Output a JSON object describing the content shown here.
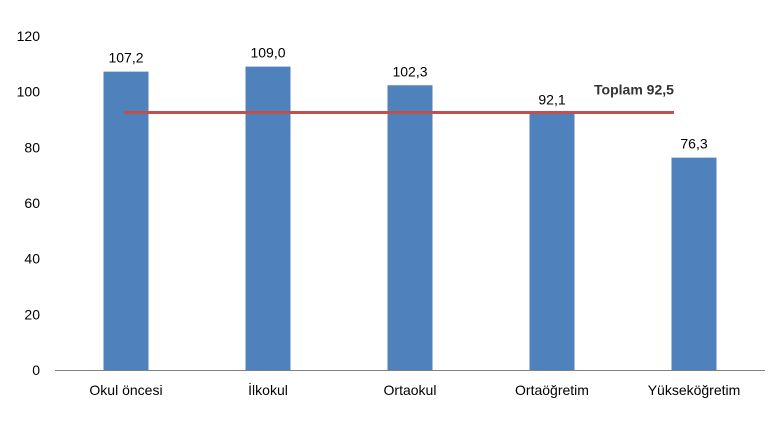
{
  "chart_data": {
    "type": "bar",
    "categories": [
      "Okul öncesi",
      "İlkokul",
      "Ortaokul",
      "Ortaöğretim",
      "Yükseköğretim"
    ],
    "values": [
      107.2,
      109.0,
      102.3,
      92.1,
      76.3
    ],
    "data_labels": [
      "107,2",
      "109,0",
      "102,3",
      "92,1",
      "76,3"
    ],
    "yticks": [
      0,
      20,
      40,
      60,
      80,
      100,
      120
    ],
    "ylim": [
      0,
      120
    ],
    "grid": false,
    "reference_line": {
      "label": "Toplam 92,5",
      "value": 92.5,
      "color": "#C0504D"
    },
    "colors": {
      "bar": "#4F81BD",
      "axis": "#7F7F7F"
    }
  }
}
